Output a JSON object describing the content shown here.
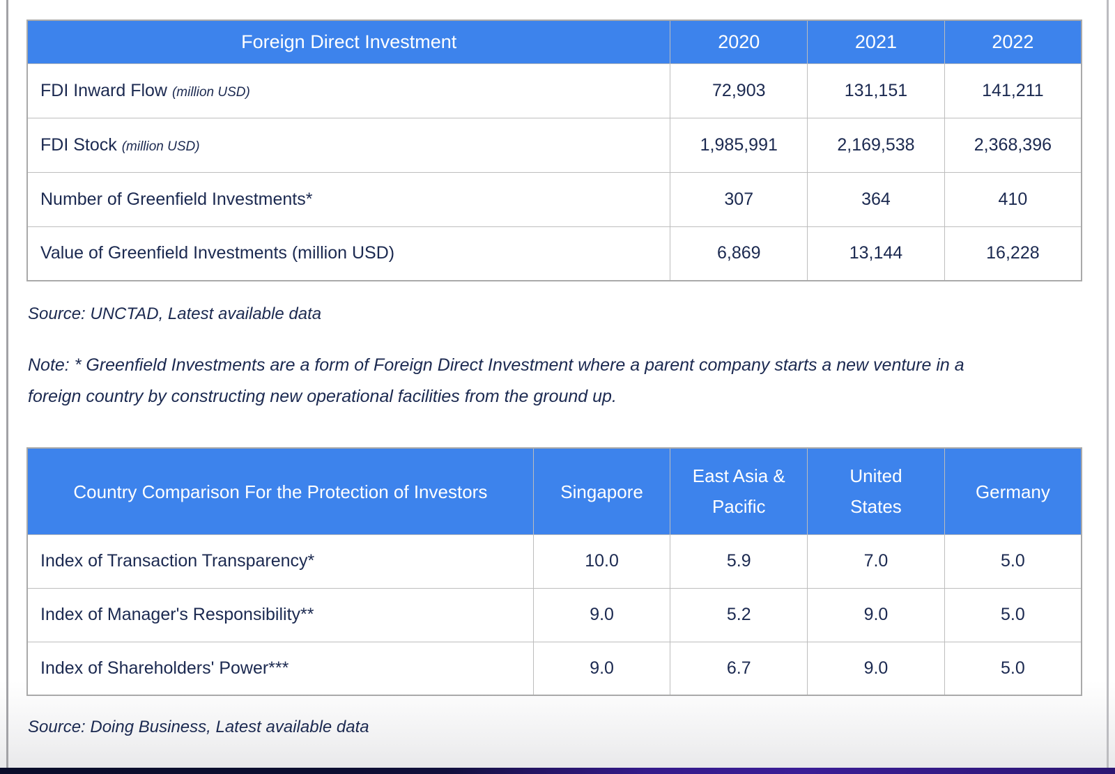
{
  "colors": {
    "header_blue": "#3d83ec",
    "text_navy": "#1b2950",
    "grid_gray": "#bdbdbd",
    "footer_navy": "#0a0d2a",
    "footer_purple": "#3a1d96"
  },
  "fdi_table": {
    "title": "Foreign Direct Investment",
    "years": [
      "2020",
      "2021",
      "2022"
    ],
    "rows": [
      {
        "label": "FDI Inward Flow",
        "sublabel": "(million USD)",
        "values": [
          "72,903",
          "131,151",
          "141,211"
        ]
      },
      {
        "label": "FDI Stock",
        "sublabel": "(million USD)",
        "values": [
          "1,985,991",
          "2,169,538",
          "2,368,396"
        ]
      },
      {
        "label": "Number of Greenfield Investments*",
        "sublabel": "",
        "values": [
          "307",
          "364",
          "410"
        ]
      },
      {
        "label": "Value of Greenfield Investments (million USD)",
        "sublabel": "",
        "values": [
          "6,869",
          "13,144",
          "16,228"
        ]
      }
    ],
    "source": "Source: UNCTAD, Latest available data",
    "note": "Note: * Greenfield Investments are a form of Foreign Direct Investment where a parent company starts a new venture in a foreign country by constructing new operational facilities from the ground up."
  },
  "protection_table": {
    "title": "Country Comparison For the Protection of Investors",
    "columns": [
      "Singapore",
      "East Asia & Pacific",
      "United States",
      "Germany"
    ],
    "rows": [
      {
        "label": "Index of Transaction Transparency*",
        "values": [
          "10.0",
          "5.9",
          "7.0",
          "5.0"
        ]
      },
      {
        "label": "Index of Manager's Responsibility**",
        "values": [
          "9.0",
          "5.2",
          "9.0",
          "5.0"
        ]
      },
      {
        "label": "Index of Shareholders' Power***",
        "values": [
          "9.0",
          "6.7",
          "9.0",
          "5.0"
        ]
      }
    ],
    "source": "Source: Doing Business, Latest available data"
  }
}
